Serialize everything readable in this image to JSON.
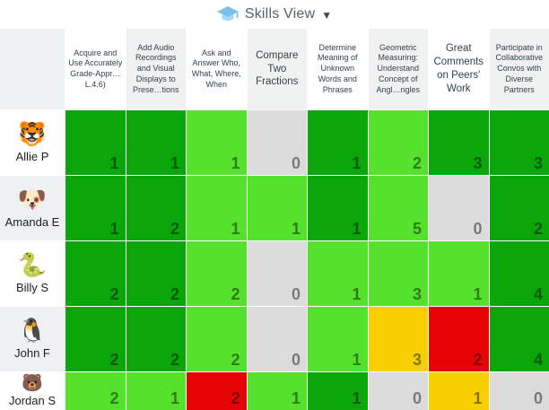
{
  "header": {
    "title": "Skills View",
    "dropdown_icon": "▼",
    "icon": "graduation-cap",
    "icon_color": "#7cbfe9",
    "title_color": "#55626c"
  },
  "columns": [
    {
      "label": "Acquire and Use Accurately Grade-Appr…L.4.6)",
      "size": "small"
    },
    {
      "label": "Add Audio Recordings and Visual Displays to Prese…tions",
      "size": "small"
    },
    {
      "label": "Ask and Answer Who, What, Where, When",
      "size": "small"
    },
    {
      "label": "Compare Two Fractions",
      "size": "large"
    },
    {
      "label": "Determine Meaning of Unknown Words and Phrases",
      "size": "small"
    },
    {
      "label": "Geometric Measuring: Understand Concept of Angl…ngles",
      "size": "small"
    },
    {
      "label": "Great Comments on Peers' Work",
      "size": "large"
    },
    {
      "label": "Participate in Collaborative Convos with Diverse Partners",
      "size": "small"
    }
  ],
  "students": [
    {
      "name": "Allie P",
      "emoji": "🐯",
      "scores": [
        {
          "value": 1,
          "level": "green"
        },
        {
          "value": 1,
          "level": "green"
        },
        {
          "value": 1,
          "level": "lightgreen"
        },
        {
          "value": 0,
          "level": "gray"
        },
        {
          "value": 1,
          "level": "green"
        },
        {
          "value": 2,
          "level": "lightgreen"
        },
        {
          "value": 3,
          "level": "green"
        },
        {
          "value": 3,
          "level": "green"
        }
      ]
    },
    {
      "name": "Amanda E",
      "emoji": "🐶",
      "scores": [
        {
          "value": 1,
          "level": "green"
        },
        {
          "value": 2,
          "level": "green"
        },
        {
          "value": 1,
          "level": "lightgreen"
        },
        {
          "value": 1,
          "level": "lightgreen"
        },
        {
          "value": 1,
          "level": "green"
        },
        {
          "value": 5,
          "level": "lightgreen"
        },
        {
          "value": 0,
          "level": "gray"
        },
        {
          "value": 2,
          "level": "green"
        }
      ]
    },
    {
      "name": "Billy S",
      "emoji": "🐍",
      "scores": [
        {
          "value": 2,
          "level": "green"
        },
        {
          "value": 2,
          "level": "green"
        },
        {
          "value": 2,
          "level": "lightgreen"
        },
        {
          "value": 0,
          "level": "gray"
        },
        {
          "value": 1,
          "level": "lightgreen"
        },
        {
          "value": 3,
          "level": "lightgreen"
        },
        {
          "value": 1,
          "level": "lightgreen"
        },
        {
          "value": 4,
          "level": "green"
        }
      ]
    },
    {
      "name": "John F",
      "emoji": "🐧",
      "scores": [
        {
          "value": 2,
          "level": "green"
        },
        {
          "value": 2,
          "level": "green"
        },
        {
          "value": 2,
          "level": "lightgreen"
        },
        {
          "value": 0,
          "level": "gray"
        },
        {
          "value": 1,
          "level": "lightgreen"
        },
        {
          "value": 3,
          "level": "yellow"
        },
        {
          "value": 2,
          "level": "red"
        },
        {
          "value": 4,
          "level": "green"
        }
      ]
    },
    {
      "name": "Jordan S",
      "emoji": "🐻",
      "scores": [
        {
          "value": 2,
          "level": "lightgreen"
        },
        {
          "value": 1,
          "level": "lightgreen"
        },
        {
          "value": 2,
          "level": "red"
        },
        {
          "value": 1,
          "level": "lightgreen"
        },
        {
          "value": 1,
          "level": "green"
        },
        {
          "value": 0,
          "level": "gray"
        },
        {
          "value": 1,
          "level": "yellow"
        },
        {
          "value": 0,
          "level": "gray"
        }
      ]
    }
  ],
  "colors": {
    "green": "#0aa60a",
    "lightgreen": "#55e22d",
    "gray": "#dcdcdc",
    "yellow": "#f8d000",
    "red": "#e50405"
  }
}
